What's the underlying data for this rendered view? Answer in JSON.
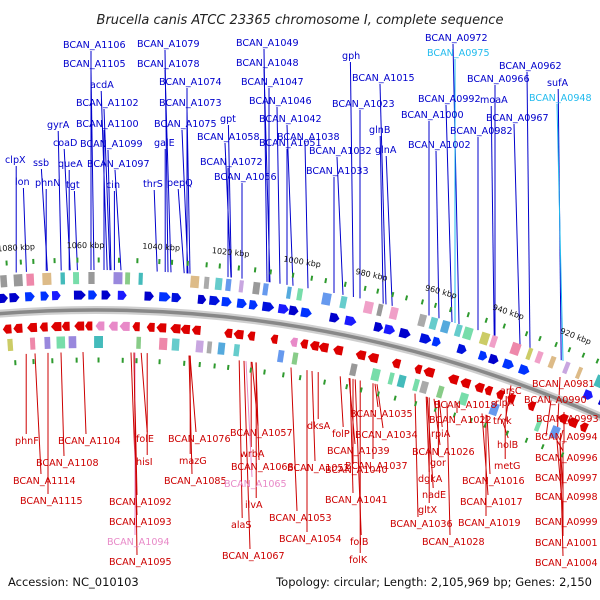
{
  "title": "Brucella canis ATCC 23365 chromosome I, complete sequence",
  "footer": {
    "accession": "Accession: NC_010103",
    "summary": "Topology: circular; Length: 2,105,969 bp; Genes: 2,150"
  },
  "colors": {
    "forward": "#0000cc",
    "reverse": "#dd0000",
    "highlight": "#22bbee",
    "highlight_reverse": "#e88ac8",
    "backbone": "#888888"
  },
  "ticks": [
    "1080 kbp",
    "1060 kbp",
    "1040 kbp",
    "1020 kbp",
    "1000 kbp",
    "980 kbp",
    "960 kbp",
    "940 kbp",
    "920 kbp"
  ],
  "forward_labels": [
    {
      "text": "clpX"
    },
    {
      "text": "lon"
    },
    {
      "text": "ssb"
    },
    {
      "text": "phnN"
    },
    {
      "text": "gyrA"
    },
    {
      "text": "coaD"
    },
    {
      "text": "queA"
    },
    {
      "text": "tgt"
    },
    {
      "text": "acdA"
    },
    {
      "text": "BCAN_A1106"
    },
    {
      "text": "BCAN_A1105"
    },
    {
      "text": "BCAN_A1102"
    },
    {
      "text": "BCAN_A1100"
    },
    {
      "text": "BCAN_A1099"
    },
    {
      "text": "BCAN_A1097"
    },
    {
      "text": "cin"
    },
    {
      "text": "BCAN_A1079"
    },
    {
      "text": "BCAN_A1078"
    },
    {
      "text": "BCAN_A1074"
    },
    {
      "text": "BCAN_A1073"
    },
    {
      "text": "BCAN_A1075"
    },
    {
      "text": "galE"
    },
    {
      "text": "thrS"
    },
    {
      "text": "pepQ"
    },
    {
      "text": "BCAN_A1072"
    },
    {
      "text": "gpt"
    },
    {
      "text": "BCAN_A1058"
    },
    {
      "text": "BCAN_A1056"
    },
    {
      "text": "BCAN_A1049"
    },
    {
      "text": "BCAN_A1048"
    },
    {
      "text": "BCAN_A1047"
    },
    {
      "text": "BCAN_A1046"
    },
    {
      "text": "BCAN_A1042"
    },
    {
      "text": "BCAN_A1051"
    },
    {
      "text": "BCAN_A1038"
    },
    {
      "text": "BCAN_A1032"
    },
    {
      "text": "BCAN_A1033"
    },
    {
      "text": "gph"
    },
    {
      "text": "BCAN_A1015"
    },
    {
      "text": "BCAN_A1023"
    },
    {
      "text": "glnB"
    },
    {
      "text": "glnA"
    },
    {
      "text": "BCAN_A1000"
    },
    {
      "text": "BCAN_A1002"
    },
    {
      "text": "BCAN_A0992"
    },
    {
      "text": "BCAN_A0982"
    },
    {
      "text": "moaA"
    },
    {
      "text": "BCAN_A0967"
    },
    {
      "text": "BCAN_A0966"
    },
    {
      "text": "BCAN_A0962"
    },
    {
      "text": "BCAN_A0972"
    },
    {
      "text": "BCAN_A0975",
      "highlight": true
    },
    {
      "text": "sufA"
    },
    {
      "text": "BCAN_A0948",
      "highlight": true
    }
  ],
  "reverse_labels": [
    {
      "text": "phnF"
    },
    {
      "text": "BCAN_A1108"
    },
    {
      "text": "BCAN_A1114"
    },
    {
      "text": "BCAN_A1115"
    },
    {
      "text": "BCAN_A1104"
    },
    {
      "text": "folE"
    },
    {
      "text": "hisI"
    },
    {
      "text": "BCAN_A1092"
    },
    {
      "text": "BCAN_A1093"
    },
    {
      "text": "BCAN_A1094",
      "highlight": true
    },
    {
      "text": "BCAN_A1095"
    },
    {
      "text": "BCAN_A1076"
    },
    {
      "text": "mazG"
    },
    {
      "text": "BCAN_A1085"
    },
    {
      "text": "BCAN_A1057"
    },
    {
      "text": "wrbA"
    },
    {
      "text": "BCAN_A1068"
    },
    {
      "text": "BCAN_A1065",
      "highlight": true
    },
    {
      "text": "ilvA"
    },
    {
      "text": "alaS"
    },
    {
      "text": "BCAN_A1067"
    },
    {
      "text": "dksA"
    },
    {
      "text": "BCAN_A1052"
    },
    {
      "text": "BCAN_A1053"
    },
    {
      "text": "BCAN_A1054"
    },
    {
      "text": "folP"
    },
    {
      "text": "BCAN_A1039"
    },
    {
      "text": "BCAN_A1040"
    },
    {
      "text": "BCAN_A1041"
    },
    {
      "text": "folB"
    },
    {
      "text": "folK"
    },
    {
      "text": "BCAN_A1035"
    },
    {
      "text": "BCAN_A1034"
    },
    {
      "text": "BCAN_A1037"
    },
    {
      "text": "BCAN_A1036"
    },
    {
      "text": "BCAN_A1018"
    },
    {
      "text": "BCAN_A1022"
    },
    {
      "text": "rpiA"
    },
    {
      "text": "BCAN_A1026"
    },
    {
      "text": "gor"
    },
    {
      "text": "dgkA"
    },
    {
      "text": "nadE"
    },
    {
      "text": "gltX"
    },
    {
      "text": "BCAN_A1028"
    },
    {
      "text": "arsC"
    },
    {
      "text": "rlpA"
    },
    {
      "text": "tmk"
    },
    {
      "text": "holB"
    },
    {
      "text": "metG"
    },
    {
      "text": "BCAN_A1016"
    },
    {
      "text": "BCAN_A1017"
    },
    {
      "text": "BCAN_A1019"
    },
    {
      "text": "BCAN_A0981"
    },
    {
      "text": "BCAN_A0990"
    },
    {
      "text": "BCAN_A0993"
    },
    {
      "text": "BCAN_A0994"
    },
    {
      "text": "BCAN_A0996"
    },
    {
      "text": "BCAN_A0997"
    },
    {
      "text": "BCAN_A0998"
    },
    {
      "text": "BCAN_A0999"
    },
    {
      "text": "BCAN_A1001"
    },
    {
      "text": "BCAN_A1004"
    }
  ]
}
